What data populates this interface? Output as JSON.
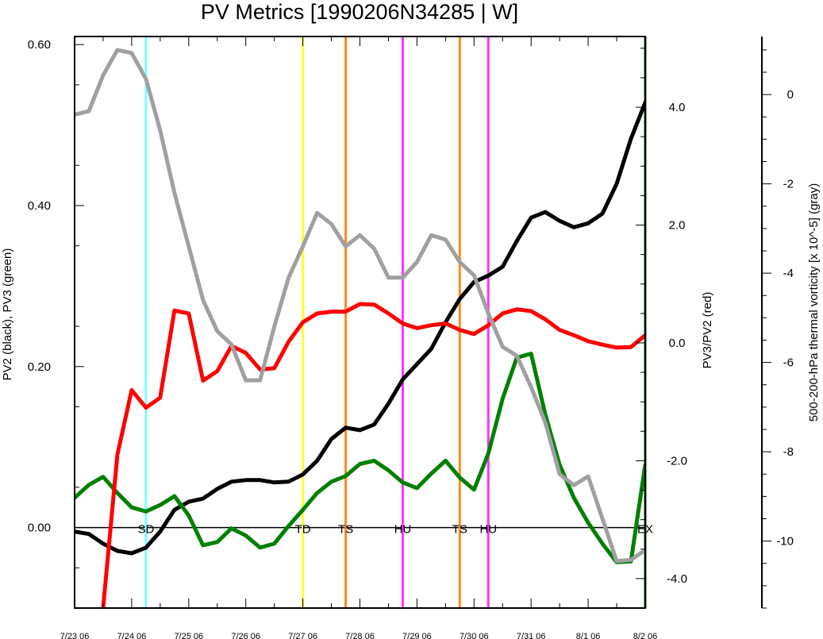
{
  "chart_data": {
    "type": "line",
    "title": "PV Metrics [1990206N34285 | W]",
    "x_tick_labels": [
      "7/23 06",
      "7/24 06",
      "7/25 06",
      "7/26 06",
      "7/27 06",
      "7/28 06",
      "7/29 06",
      "7/30 06",
      "7/31 06",
      "8/1 06",
      "8/2 06"
    ],
    "x_range_days": [
      0,
      10
    ],
    "y_left": {
      "label": "PV2 (black), PV3 (green)",
      "range": [
        -0.1,
        0.61
      ],
      "ticks": [
        0.0,
        0.2,
        0.4,
        0.6
      ],
      "tick_labels": [
        "0.00",
        "0.20",
        "0.40",
        "0.60"
      ]
    },
    "y_right": {
      "label": "PV3/PV2 (red)",
      "range": [
        -4.5,
        5.2
      ],
      "ticks": [
        -4,
        -2,
        0,
        2,
        4
      ],
      "tick_labels": [
        "-4.0",
        "-2.0",
        "0.0",
        "2.0",
        "4.0"
      ]
    },
    "y_far_right": {
      "label": "500-200-hPa thermal vorticity [x 10^-5] (gray)",
      "range": [
        -11.5,
        1.3
      ],
      "ticks": [
        0,
        -2,
        -4,
        -6,
        -8,
        -10
      ],
      "tick_labels": [
        "0",
        "-2",
        "-4",
        "-6",
        "-8",
        "-10"
      ]
    },
    "zero_line": true,
    "series": [
      {
        "color": "#000000",
        "axis": "left",
        "x": [
          0,
          0.25,
          0.5,
          0.75,
          1.0,
          1.25,
          1.5,
          1.75,
          2.0,
          2.25,
          2.5,
          2.75,
          3.0,
          3.25,
          3.5,
          3.75,
          4.0,
          4.25,
          4.5,
          4.75,
          5.0,
          5.25,
          5.5,
          5.75,
          6.0,
          6.25,
          6.5,
          6.75,
          7.0,
          7.25,
          7.5,
          7.75,
          8.0,
          8.25,
          8.5,
          8.75,
          9.0,
          9.25,
          9.5,
          9.75,
          10.0
        ],
        "y": [
          -0.005,
          -0.008,
          -0.02,
          -0.029,
          -0.032,
          -0.025,
          -0.005,
          0.022,
          0.032,
          0.036,
          0.048,
          0.057,
          0.059,
          0.059,
          0.056,
          0.057,
          0.066,
          0.083,
          0.11,
          0.124,
          0.121,
          0.128,
          0.154,
          0.184,
          0.203,
          0.222,
          0.255,
          0.284,
          0.305,
          0.313,
          0.324,
          0.356,
          0.385,
          0.392,
          0.381,
          0.373,
          0.378,
          0.39,
          0.427,
          0.483,
          0.528
        ]
      },
      {
        "color": "#008000",
        "axis": "left",
        "x": [
          0,
          0.25,
          0.5,
          0.75,
          1.0,
          1.25,
          1.5,
          1.75,
          2.0,
          2.25,
          2.5,
          2.75,
          3.0,
          3.25,
          3.5,
          3.75,
          4.0,
          4.25,
          4.5,
          4.75,
          5.0,
          5.25,
          5.5,
          5.75,
          6.0,
          6.25,
          6.5,
          6.75,
          7.0,
          7.25,
          7.5,
          7.75,
          8.0,
          8.25,
          8.5,
          8.75,
          9.0,
          9.25,
          9.5,
          9.75,
          10.0
        ],
        "y": [
          0.037,
          0.053,
          0.063,
          0.043,
          0.025,
          0.02,
          0.028,
          0.039,
          0.015,
          -0.022,
          -0.018,
          -0.001,
          -0.01,
          -0.025,
          -0.02,
          0.002,
          0.022,
          0.043,
          0.057,
          0.064,
          0.079,
          0.083,
          0.071,
          0.056,
          0.049,
          0.067,
          0.083,
          0.062,
          0.047,
          0.092,
          0.16,
          0.211,
          0.216,
          0.14,
          0.078,
          0.037,
          0.006,
          -0.02,
          -0.043,
          -0.042,
          0.078
        ]
      },
      {
        "color": "#ff0000",
        "axis": "right",
        "x": [
          0.5,
          0.75,
          1.0,
          1.25,
          1.5,
          1.75,
          2.0,
          2.25,
          2.5,
          2.75,
          3.0,
          3.25,
          3.5,
          3.75,
          4.0,
          4.25,
          4.5,
          4.75,
          5.0,
          5.25,
          5.5,
          5.75,
          6.0,
          6.25,
          6.5,
          6.75,
          7.0,
          7.25,
          7.5,
          7.75,
          8.0,
          8.25,
          8.5,
          8.75,
          9.0,
          9.25,
          9.5,
          9.75,
          10.0
        ],
        "y": [
          -4.5,
          -1.9,
          -0.8,
          -1.1,
          -0.93,
          0.55,
          0.5,
          -0.64,
          -0.48,
          -0.05,
          -0.17,
          -0.45,
          -0.43,
          0.02,
          0.35,
          0.5,
          0.53,
          0.53,
          0.66,
          0.65,
          0.5,
          0.33,
          0.25,
          0.3,
          0.33,
          0.22,
          0.15,
          0.3,
          0.5,
          0.57,
          0.54,
          0.4,
          0.22,
          0.13,
          0.03,
          -0.03,
          -0.08,
          -0.07,
          0.13
        ]
      },
      {
        "color": "#a0a0a0",
        "axis": "far_right",
        "x": [
          0,
          0.25,
          0.5,
          0.75,
          1.0,
          1.25,
          1.5,
          1.75,
          2.0,
          2.25,
          2.5,
          2.75,
          3.0,
          3.25,
          3.5,
          3.75,
          4.0,
          4.25,
          4.5,
          4.75,
          5.0,
          5.25,
          5.5,
          5.75,
          6.0,
          6.25,
          6.5,
          6.75,
          7.0,
          7.25,
          7.5,
          7.75,
          8.0,
          8.25,
          8.5,
          8.75,
          9.0,
          9.25,
          9.5,
          9.75,
          10.0
        ],
        "y": [
          -0.45,
          -0.37,
          0.43,
          1.0,
          0.93,
          0.35,
          -0.8,
          -2.2,
          -3.4,
          -4.6,
          -5.3,
          -5.6,
          -6.4,
          -6.4,
          -5.2,
          -4.1,
          -3.4,
          -2.65,
          -2.9,
          -3.4,
          -3.15,
          -3.45,
          -4.1,
          -4.1,
          -3.75,
          -3.15,
          -3.25,
          -3.75,
          -4.05,
          -4.9,
          -5.65,
          -5.85,
          -6.55,
          -7.35,
          -8.5,
          -8.75,
          -8.55,
          -9.5,
          -10.45,
          -10.42,
          -10.2
        ]
      }
    ],
    "vertical_markers": [
      {
        "x": 1.25,
        "color": "#7fffff",
        "label": "SD"
      },
      {
        "x": 4.0,
        "color": "#ffff33",
        "label": "TD"
      },
      {
        "x": 4.75,
        "color": "#ff8c1a",
        "label": "TS"
      },
      {
        "x": 5.75,
        "color": "#ff33ff",
        "label": "HU"
      },
      {
        "x": 6.75,
        "color": "#ff8c1a",
        "label": "TS"
      },
      {
        "x": 7.25,
        "color": "#ff33ff",
        "label": "HU"
      },
      {
        "x": 10.0,
        "color": "#006400",
        "label": "EX"
      }
    ]
  }
}
